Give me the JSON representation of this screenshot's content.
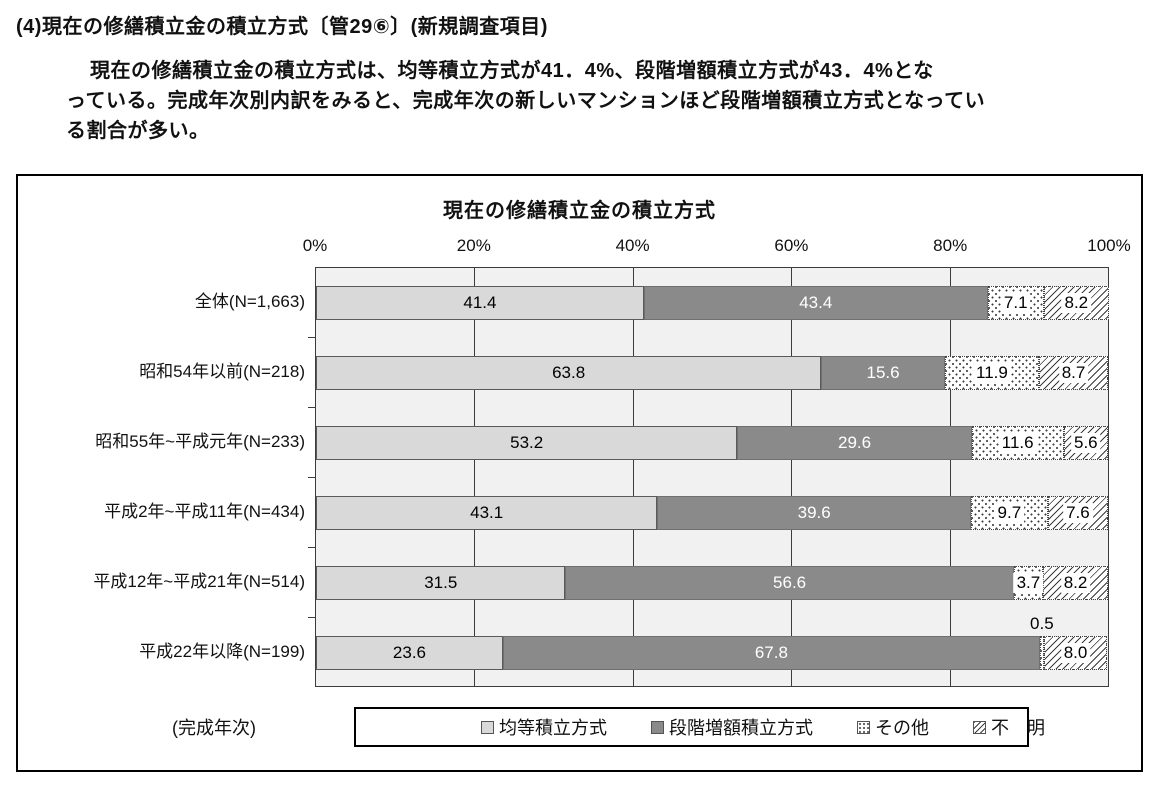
{
  "page": {
    "heading": "(4)現在の修繕積立金の積立方式〔管29⑥〕(新規調査項目)",
    "paragraph_lines": [
      "現在の修繕積立金の積立方式は、均等積立方式が41．4%、段階増額積立方式が43．4%とな",
      "っている。完成年次別内訳をみると、完成年次の新しいマンションほど段階増額積立方式となってい",
      "る割合が多い。"
    ]
  },
  "chart_data": {
    "type": "bar",
    "orientation": "horizontal",
    "stacked": true,
    "title": "現在の修繕積立金の積立方式",
    "axis_caption": "(完成年次)",
    "x_axis": {
      "range": [
        0,
        100
      ],
      "ticks": [
        "0%",
        "20%",
        "40%",
        "60%",
        "80%",
        "100%"
      ],
      "grid": true
    },
    "categories": [
      "全体(N=1,663)",
      "昭和54年以前(N=218)",
      "昭和55年~平成元年(N=233)",
      "平成2年~平成11年(N=434)",
      "平成12年~平成21年(N=514)",
      "平成22年以降(N=199)"
    ],
    "series": [
      {
        "id": "equal",
        "name": "均等積立方式",
        "style": "light",
        "values": [
          41.4,
          63.8,
          53.2,
          43.1,
          31.5,
          23.6
        ]
      },
      {
        "id": "stepped",
        "name": "段階増額積立方式",
        "style": "dark",
        "values": [
          43.4,
          15.6,
          29.6,
          39.6,
          56.6,
          67.8
        ]
      },
      {
        "id": "other",
        "name": "その他",
        "style": "dots",
        "values": [
          7.1,
          11.9,
          11.6,
          9.7,
          3.7,
          0.5
        ]
      },
      {
        "id": "unknown",
        "name": "不　明",
        "style": "hatch",
        "values": [
          8.2,
          8.7,
          5.6,
          7.6,
          8.2,
          8.0
        ]
      }
    ],
    "legend_position": "bottom",
    "colors": {
      "equal": "#d9d9d9",
      "stepped": "#8a8a8a",
      "plot_background": "#f1f1f1",
      "grid_line": "#3c3c3c",
      "border": "#000000"
    }
  }
}
